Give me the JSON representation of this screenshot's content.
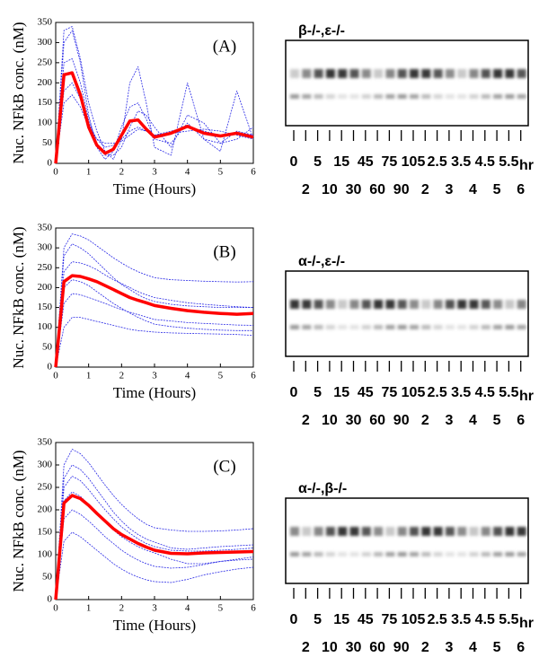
{
  "chart_data": [
    {
      "type": "line",
      "annotation": "(A)",
      "xlabel": "Time (Hours)",
      "ylabel": "Nuc. NFkB conc. (nM)",
      "xlim": [
        0,
        6
      ],
      "xticks": [
        0,
        1,
        2,
        3,
        4,
        5,
        6
      ],
      "ylim": [
        0,
        350
      ],
      "yticks": [
        0,
        50,
        100,
        150,
        200,
        250,
        300,
        350
      ],
      "x": [
        0,
        0.25,
        0.5,
        0.75,
        1,
        1.25,
        1.5,
        1.75,
        2,
        2.25,
        2.5,
        2.75,
        3,
        3.5,
        4,
        4.5,
        5,
        5.5,
        6
      ],
      "series": [
        {
          "color": "#2a2ae6",
          "dashed": true,
          "values": [
            0,
            300,
            330,
            250,
            120,
            40,
            10,
            30,
            90,
            140,
            150,
            110,
            60,
            50,
            100,
            60,
            50,
            80,
            70
          ]
        },
        {
          "color": "#2a2ae6",
          "dashed": true,
          "values": [
            0,
            180,
            200,
            160,
            100,
            60,
            40,
            45,
            60,
            80,
            90,
            80,
            70,
            80,
            90,
            80,
            70,
            75,
            70
          ]
        },
        {
          "color": "#2a2ae6",
          "dashed": true,
          "values": [
            0,
            250,
            260,
            200,
            110,
            50,
            20,
            20,
            40,
            90,
            130,
            120,
            90,
            40,
            120,
            100,
            50,
            60,
            90
          ]
        },
        {
          "color": "#2a2ae6",
          "dashed": true,
          "values": [
            0,
            150,
            170,
            140,
            90,
            60,
            50,
            50,
            55,
            70,
            85,
            80,
            70,
            75,
            80,
            85,
            80,
            70,
            60
          ]
        },
        {
          "color": "#2a2ae6",
          "dashed": true,
          "values": [
            0,
            330,
            340,
            260,
            150,
            80,
            30,
            10,
            60,
            200,
            240,
            150,
            40,
            20,
            200,
            60,
            30,
            180,
            60
          ]
        },
        {
          "color": "#ff0000",
          "dashed": false,
          "values": [
            0,
            220,
            225,
            170,
            90,
            45,
            25,
            35,
            70,
            105,
            108,
            85,
            65,
            75,
            92,
            75,
            68,
            75,
            65
          ]
        }
      ]
    },
    {
      "type": "line",
      "annotation": "(B)",
      "xlabel": "Time (Hours)",
      "ylabel": "Nuc. NFkB conc. (nM)",
      "xlim": [
        0,
        6
      ],
      "xticks": [
        0,
        1,
        2,
        3,
        4,
        5,
        6
      ],
      "ylim": [
        0,
        350
      ],
      "yticks": [
        0,
        50,
        100,
        150,
        200,
        250,
        300,
        350
      ],
      "x": [
        0,
        0.25,
        0.5,
        0.75,
        1,
        1.25,
        1.5,
        1.75,
        2,
        2.25,
        2.5,
        2.75,
        3,
        3.5,
        4,
        4.5,
        5,
        5.5,
        6
      ],
      "series": [
        {
          "color": "#2a2ae6",
          "dashed": true,
          "values": [
            0,
            300,
            335,
            330,
            320,
            305,
            290,
            275,
            262,
            250,
            240,
            232,
            225,
            220,
            218,
            216,
            215,
            214,
            215
          ]
        },
        {
          "color": "#2a2ae6",
          "dashed": true,
          "values": [
            0,
            240,
            265,
            262,
            255,
            245,
            232,
            220,
            210,
            200,
            190,
            182,
            175,
            168,
            162,
            158,
            155,
            152,
            150
          ]
        },
        {
          "color": "#2a2ae6",
          "dashed": true,
          "values": [
            0,
            160,
            185,
            182,
            175,
            168,
            160,
            152,
            145,
            138,
            132,
            126,
            120,
            116,
            112,
            110,
            108,
            106,
            105
          ]
        },
        {
          "color": "#2a2ae6",
          "dashed": true,
          "values": [
            0,
            100,
            125,
            125,
            120,
            115,
            110,
            105,
            100,
            95,
            92,
            90,
            88,
            86,
            85,
            84,
            83,
            82,
            80
          ]
        },
        {
          "color": "#2a2ae6",
          "dashed": true,
          "values": [
            0,
            280,
            310,
            300,
            285,
            265,
            245,
            225,
            208,
            195,
            182,
            172,
            165,
            158,
            154,
            152,
            150,
            150,
            150
          ]
        },
        {
          "color": "#2a2ae6",
          "dashed": true,
          "values": [
            0,
            200,
            220,
            215,
            205,
            190,
            175,
            160,
            148,
            136,
            125,
            116,
            108,
            102,
            98,
            95,
            93,
            92,
            92
          ]
        },
        {
          "color": "#ff0000",
          "dashed": false,
          "values": [
            0,
            215,
            230,
            228,
            222,
            215,
            205,
            195,
            185,
            175,
            168,
            162,
            155,
            148,
            142,
            138,
            135,
            133,
            135
          ]
        }
      ]
    },
    {
      "type": "line",
      "annotation": "(C)",
      "xlabel": "Time (Hours)",
      "ylabel": "Nuc. NFkB conc. (nM)",
      "xlim": [
        0,
        6
      ],
      "xticks": [
        0,
        1,
        2,
        3,
        4,
        5,
        6
      ],
      "ylim": [
        0,
        350
      ],
      "yticks": [
        0,
        50,
        100,
        150,
        200,
        250,
        300,
        350
      ],
      "x": [
        0,
        0.25,
        0.5,
        0.75,
        1,
        1.25,
        1.5,
        1.75,
        2,
        2.25,
        2.5,
        2.75,
        3,
        3.5,
        4,
        4.5,
        5,
        5.5,
        6
      ],
      "series": [
        {
          "color": "#2a2ae6",
          "dashed": true,
          "values": [
            0,
            300,
            335,
            325,
            305,
            280,
            255,
            232,
            212,
            195,
            180,
            168,
            160,
            155,
            152,
            152,
            153,
            155,
            158
          ]
        },
        {
          "color": "#2a2ae6",
          "dashed": true,
          "values": [
            0,
            250,
            275,
            265,
            245,
            222,
            200,
            180,
            162,
            148,
            135,
            125,
            118,
            110,
            108,
            108,
            110,
            112,
            115
          ]
        },
        {
          "color": "#2a2ae6",
          "dashed": true,
          "values": [
            0,
            180,
            200,
            190,
            175,
            158,
            140,
            125,
            110,
            98,
            88,
            80,
            74,
            70,
            72,
            78,
            85,
            90,
            95
          ]
        },
        {
          "color": "#2a2ae6",
          "dashed": true,
          "values": [
            0,
            130,
            150,
            140,
            125,
            110,
            95,
            80,
            68,
            58,
            50,
            44,
            40,
            38,
            45,
            55,
            62,
            68,
            72
          ]
        },
        {
          "color": "#2a2ae6",
          "dashed": true,
          "values": [
            0,
            270,
            300,
            290,
            270,
            245,
            220,
            195,
            175,
            158,
            145,
            135,
            128,
            115,
            112,
            115,
            118,
            120,
            122
          ]
        },
        {
          "color": "#2a2ae6",
          "dashed": true,
          "values": [
            0,
            220,
            240,
            230,
            212,
            192,
            172,
            155,
            140,
            128,
            118,
            110,
            104,
            90,
            80,
            80,
            85,
            88,
            90
          ]
        },
        {
          "color": "#ff0000",
          "dashed": false,
          "values": [
            0,
            215,
            232,
            225,
            210,
            192,
            175,
            158,
            145,
            135,
            125,
            117,
            110,
            103,
            102,
            104,
            105,
            106,
            107
          ]
        }
      ]
    }
  ],
  "gels": [
    {
      "title": "β-/-,ε-/-",
      "labels_top": [
        "0",
        "5",
        "15",
        "45",
        "75",
        "105",
        "2.5",
        "3.5",
        "4.5",
        "5.5"
      ],
      "labels_bottom": [
        "2",
        "10",
        "30",
        "60",
        "90",
        "2",
        "3",
        "4",
        "5",
        "6"
      ],
      "unit": "hr"
    },
    {
      "title": "α-/-,ε-/-",
      "labels_top": [
        "0",
        "5",
        "15",
        "45",
        "75",
        "105",
        "2.5",
        "3.5",
        "4.5",
        "5.5"
      ],
      "labels_bottom": [
        "2",
        "10",
        "30",
        "60",
        "90",
        "2",
        "3",
        "4",
        "5",
        "6"
      ],
      "unit": "hr"
    },
    {
      "title": "α-/-,β-/-",
      "labels_top": [
        "0",
        "5",
        "15",
        "45",
        "75",
        "105",
        "2.5",
        "3.5",
        "4.5",
        "5.5"
      ],
      "labels_bottom": [
        "2",
        "10",
        "30",
        "60",
        "90",
        "2",
        "3",
        "4",
        "5",
        "6"
      ],
      "unit": "hr"
    }
  ]
}
